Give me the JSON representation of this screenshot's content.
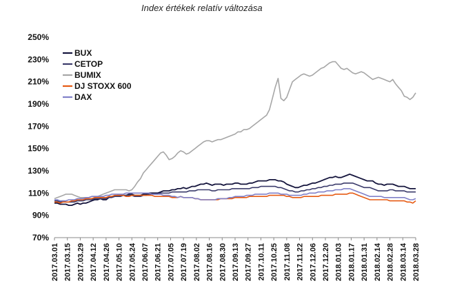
{
  "chart_data": {
    "type": "line",
    "title": "Index értékek relatív változása",
    "xlabel": "",
    "ylabel": "",
    "ylim": [
      70,
      250
    ],
    "y_ticks": [
      70,
      90,
      110,
      130,
      150,
      170,
      190,
      210,
      230,
      250
    ],
    "y_tick_labels": [
      "70%",
      "90%",
      "110%",
      "130%",
      "150%",
      "170%",
      "190%",
      "210%",
      "230%",
      "250%"
    ],
    "x_ticks": [
      "2017.03.01",
      "2017.03.15",
      "2017.03.29",
      "2017.04.12",
      "2017.04.26",
      "2017.05.10",
      "2017.05.24",
      "2017.06.07",
      "2017.06.21",
      "2017.07.05",
      "2017.07.19",
      "2017.08.02",
      "2017.08.16",
      "2017.08.30",
      "2017.09.13",
      "2017.09.27",
      "2017.10.11",
      "2017.10.25",
      "2017.11.08",
      "2017.11.22",
      "2017.12.06",
      "2017.12.20",
      "2018.01.03",
      "2018.01.17",
      "2018.01.31",
      "2018.02.14",
      "2018.02.28",
      "2018.03.14",
      "2018.03.28"
    ],
    "grid": false,
    "legend_position": "top-left",
    "series": [
      {
        "name": "BUX",
        "color": "#14143c",
        "values": [
          101,
          101,
          100,
          100,
          100,
          99,
          99,
          100,
          101,
          100,
          101,
          101,
          102,
          103,
          104,
          104,
          105,
          104,
          104,
          106,
          107,
          107,
          108,
          108,
          108,
          108,
          109,
          109,
          108,
          108,
          108,
          109,
          109,
          110,
          110,
          110,
          110,
          111,
          112,
          112,
          112,
          113,
          113,
          114,
          114,
          115,
          114,
          115,
          116,
          116,
          117,
          118,
          118,
          119,
          118,
          117,
          118,
          118,
          118,
          117,
          118,
          118,
          118,
          119,
          119,
          118,
          118,
          118,
          119,
          119,
          120,
          121,
          121,
          121,
          121,
          122,
          122,
          122,
          121,
          121,
          120,
          118,
          117,
          116,
          115,
          115,
          116,
          117,
          117,
          118,
          119,
          119,
          120,
          121,
          122,
          123,
          124,
          124,
          125,
          124,
          124,
          125,
          126,
          127,
          126,
          125,
          124,
          123,
          122,
          121,
          121,
          121,
          119,
          118,
          118,
          117,
          118,
          118,
          118,
          117,
          116,
          116,
          116,
          115,
          114,
          114,
          114
        ]
      },
      {
        "name": "CETOP",
        "color": "#3a3a6a",
        "values": [
          103,
          103,
          102,
          103,
          102,
          102,
          102,
          102,
          103,
          103,
          103,
          104,
          104,
          104,
          105,
          105,
          105,
          105,
          105,
          106,
          106,
          107,
          107,
          107,
          108,
          108,
          108,
          108,
          107,
          107,
          107,
          108,
          108,
          109,
          109,
          109,
          109,
          110,
          110,
          110,
          110,
          111,
          111,
          111,
          111,
          111,
          111,
          112,
          112,
          112,
          113,
          113,
          113,
          113,
          113,
          112,
          112,
          113,
          113,
          113,
          113,
          113,
          114,
          114,
          114,
          114,
          114,
          114,
          114,
          115,
          115,
          115,
          116,
          116,
          116,
          116,
          116,
          116,
          115,
          115,
          114,
          113,
          112,
          112,
          111,
          111,
          112,
          112,
          113,
          113,
          114,
          114,
          115,
          115,
          116,
          116,
          117,
          117,
          118,
          118,
          118,
          119,
          119,
          119,
          119,
          118,
          117,
          116,
          115,
          115,
          115,
          114,
          113,
          112,
          112,
          112,
          112,
          113,
          113,
          112,
          112,
          112,
          112,
          111,
          111,
          111,
          111
        ]
      },
      {
        "name": "BUMIX",
        "color": "#a6a6a6",
        "values": [
          105,
          106,
          107,
          108,
          109,
          109,
          109,
          108,
          107,
          106,
          106,
          106,
          106,
          107,
          107,
          107,
          108,
          109,
          110,
          111,
          112,
          113,
          113,
          113,
          113,
          113,
          112,
          113,
          116,
          120,
          123,
          128,
          131,
          134,
          137,
          140,
          143,
          146,
          147,
          144,
          140,
          141,
          143,
          146,
          148,
          147,
          145,
          146,
          148,
          150,
          152,
          154,
          156,
          157,
          157,
          156,
          157,
          158,
          158,
          159,
          160,
          161,
          162,
          163,
          165,
          165,
          167,
          167,
          168,
          170,
          172,
          174,
          176,
          178,
          180,
          185,
          195,
          205,
          213,
          195,
          193,
          196,
          203,
          210,
          212,
          214,
          216,
          217,
          216,
          215,
          216,
          218,
          220,
          222,
          223,
          225,
          227,
          228,
          228,
          225,
          222,
          221,
          222,
          220,
          218,
          217,
          218,
          219,
          218,
          216,
          214,
          212,
          213,
          214,
          213,
          212,
          211,
          210,
          212,
          208,
          205,
          202,
          197,
          196,
          194,
          196,
          200
        ]
      },
      {
        "name": "DJ STOXX 600",
        "color": "#e65a12",
        "values": [
          102,
          102,
          101,
          102,
          102,
          102,
          103,
          103,
          104,
          104,
          104,
          105,
          105,
          105,
          106,
          106,
          106,
          106,
          106,
          107,
          107,
          108,
          108,
          108,
          108,
          107,
          107,
          108,
          108,
          108,
          108,
          108,
          108,
          108,
          108,
          107,
          107,
          107,
          107,
          107,
          107,
          106,
          106,
          106,
          107,
          106,
          106,
          106,
          106,
          105,
          105,
          104,
          104,
          104,
          104,
          104,
          104,
          104,
          105,
          105,
          105,
          105,
          105,
          106,
          106,
          106,
          106,
          106,
          107,
          107,
          107,
          107,
          107,
          107,
          107,
          108,
          108,
          108,
          108,
          108,
          108,
          107,
          107,
          106,
          106,
          106,
          106,
          107,
          107,
          107,
          107,
          107,
          107,
          108,
          108,
          108,
          108,
          108,
          109,
          109,
          109,
          109,
          109,
          110,
          110,
          109,
          108,
          107,
          106,
          105,
          104,
          104,
          104,
          104,
          104,
          104,
          104,
          103,
          103,
          103,
          103,
          103,
          103,
          102,
          102,
          101,
          103
        ]
      },
      {
        "name": "DAX",
        "color": "#8080c8",
        "values": [
          104,
          104,
          103,
          103,
          103,
          104,
          104,
          104,
          105,
          105,
          105,
          106,
          106,
          107,
          107,
          107,
          107,
          107,
          108,
          108,
          109,
          109,
          109,
          109,
          109,
          110,
          110,
          110,
          110,
          110,
          110,
          110,
          110,
          110,
          109,
          109,
          109,
          109,
          108,
          108,
          108,
          107,
          107,
          106,
          107,
          106,
          106,
          106,
          106,
          105,
          105,
          104,
          104,
          104,
          104,
          104,
          104,
          105,
          105,
          105,
          105,
          106,
          106,
          107,
          107,
          107,
          107,
          108,
          108,
          108,
          109,
          109,
          109,
          109,
          109,
          110,
          110,
          110,
          110,
          109,
          109,
          109,
          108,
          108,
          108,
          108,
          108,
          109,
          109,
          110,
          110,
          110,
          111,
          111,
          111,
          112,
          112,
          112,
          113,
          113,
          113,
          114,
          114,
          114,
          113,
          112,
          111,
          110,
          109,
          108,
          107,
          107,
          107,
          107,
          107,
          106,
          106,
          106,
          106,
          106,
          106,
          106,
          106,
          105,
          104,
          104,
          105
        ]
      }
    ]
  }
}
